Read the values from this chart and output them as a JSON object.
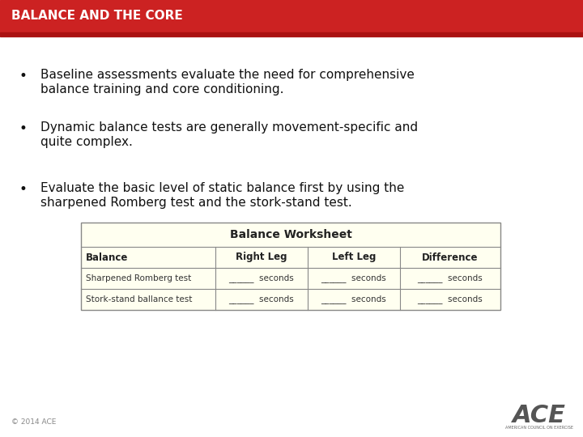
{
  "title": "BALANCE AND THE CORE",
  "title_bg_color": "#cc2222",
  "title_text_color": "#ffffff",
  "title_fontsize": 11,
  "bg_color": "#ffffff",
  "bullet_points": [
    "Baseline assessments evaluate the need for comprehensive\nbalance training and core conditioning.",
    "Dynamic balance tests are generally movement-specific and\nquite complex.",
    "Evaluate the basic level of static balance first by using the\nsharpened Romberg test and the stork-stand test."
  ],
  "bullet_fontsize": 11,
  "bullet_text_color": "#111111",
  "table_title": "Balance Worksheet",
  "table_headers": [
    "Balance",
    "Right Leg",
    "Left Leg",
    "Difference"
  ],
  "table_rows": [
    [
      "Sharpened Romberg test",
      "______  seconds",
      "______  seconds",
      "______  seconds"
    ],
    [
      "Stork-stand ballance test",
      "______  seconds",
      "______  seconds",
      "______  seconds"
    ]
  ],
  "table_bg": "#fffff0",
  "table_border_color": "#888888",
  "footer_text": "© 2014 ACE",
  "footer_fontsize": 6.5,
  "footer_color": "#888888"
}
